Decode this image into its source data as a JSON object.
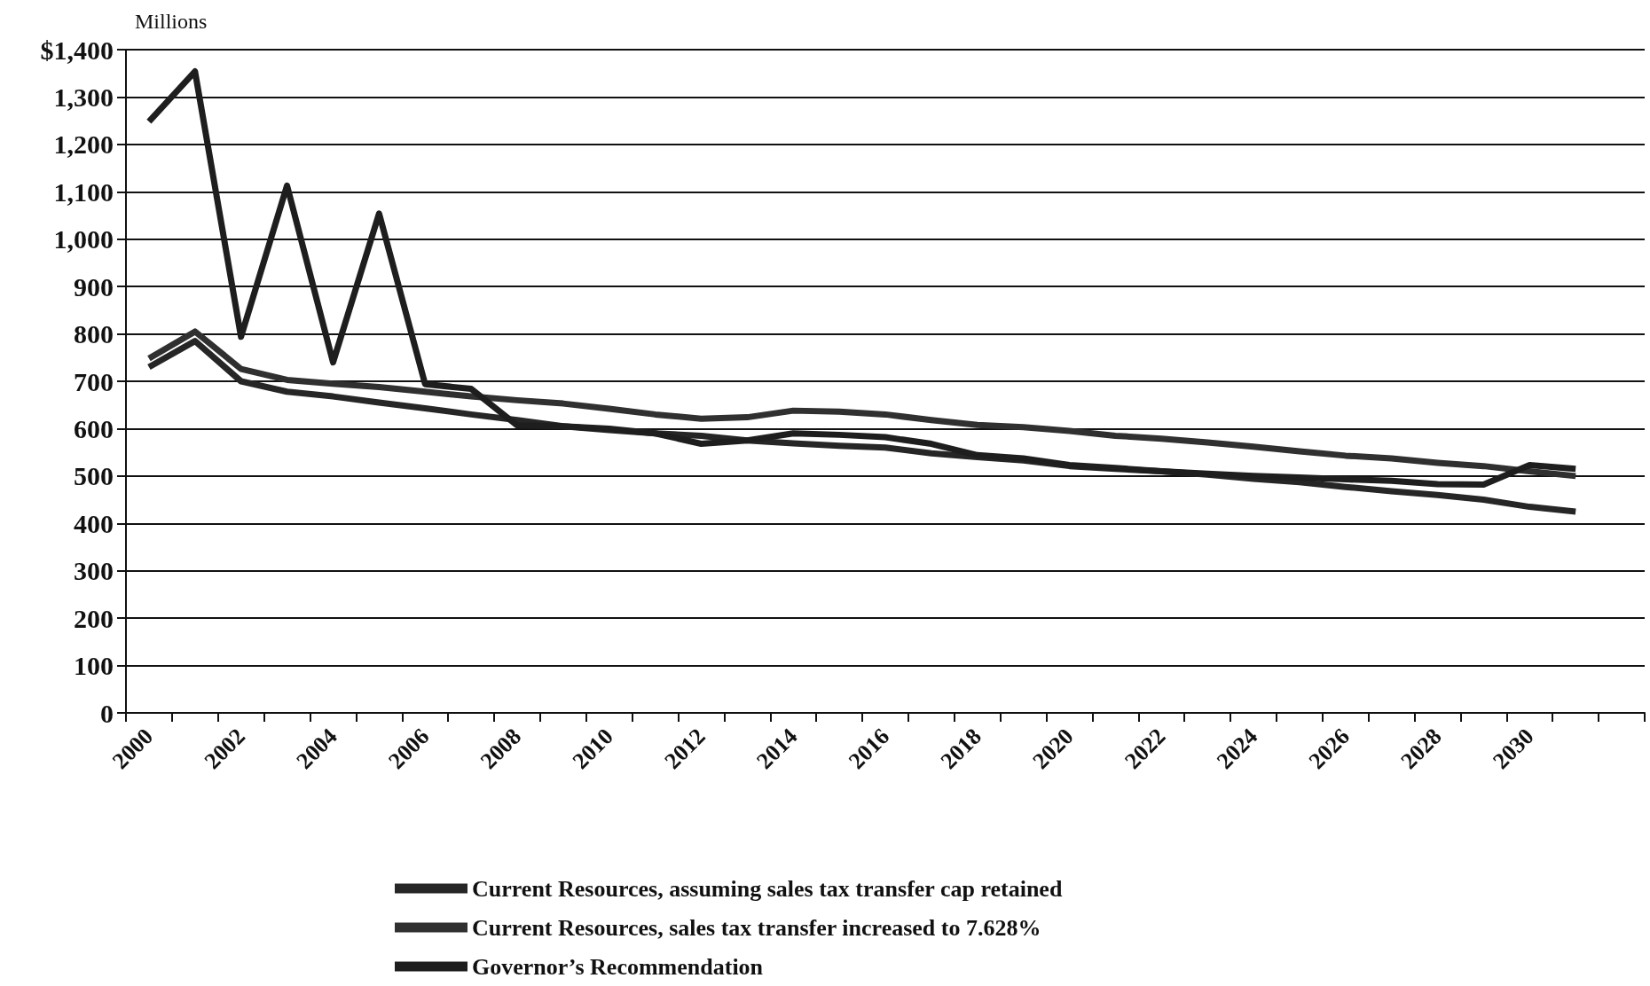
{
  "chart_data": {
    "type": "line",
    "ylabel": "Millions",
    "categories": [
      "2000",
      null,
      "2002",
      null,
      "2004",
      null,
      "2006",
      null,
      "2008",
      null,
      "2010",
      null,
      "2012",
      null,
      "2014",
      null,
      "2016",
      null,
      "2018",
      null,
      "2020",
      null,
      "2022",
      null,
      "2024",
      null,
      "2026",
      null,
      "2028",
      null,
      "2030",
      null,
      null
    ],
    "series": [
      {
        "name": "Current Resources, assuming sales tax transfer cap retained",
        "color": "#262626",
        "values": [
          730,
          785,
          700,
          678,
          668,
          655,
          643,
          630,
          618,
          605,
          597,
          590,
          585,
          575,
          569,
          564,
          560,
          548,
          540,
          533,
          521,
          515,
          510,
          503,
          494,
          487,
          477,
          468,
          460,
          450,
          435,
          425,
          null
        ]
      },
      {
        "name": "Current Resources, sales tax transfer increased to 7.628%",
        "color": "#303030",
        "values": [
          748,
          805,
          726,
          703,
          695,
          688,
          678,
          668,
          660,
          653,
          642,
          630,
          621,
          624,
          638,
          636,
          630,
          618,
          608,
          603,
          595,
          585,
          579,
          571,
          562,
          552,
          543,
          537,
          528,
          521,
          510,
          500,
          null
        ]
      },
      {
        "name": "Governor’s Recommendation",
        "color": "#1e1e1e",
        "values": [
          1248,
          1354,
          794,
          1113,
          740,
          1054,
          694,
          684,
          607,
          605,
          600,
          590,
          568,
          575,
          590,
          587,
          582,
          568,
          544,
          537,
          523,
          517,
          510,
          505,
          500,
          497,
          493,
          490,
          483,
          482,
          523,
          515,
          null
        ]
      }
    ],
    "ylim": [
      0,
      1400
    ],
    "yticks": [
      0,
      100,
      200,
      300,
      400,
      500,
      600,
      700,
      800,
      900,
      {
        "value": 1000,
        "label": "1,000"
      },
      {
        "value": 1100,
        "label": "1,100"
      },
      {
        "value": 1200,
        "label": "1,200"
      },
      {
        "value": 1300,
        "label": "1,300"
      },
      {
        "value": 1400,
        "label": "$1,400"
      }
    ],
    "grid": "y",
    "legend": "bottom",
    "marker": "none",
    "line_style": "solid"
  }
}
